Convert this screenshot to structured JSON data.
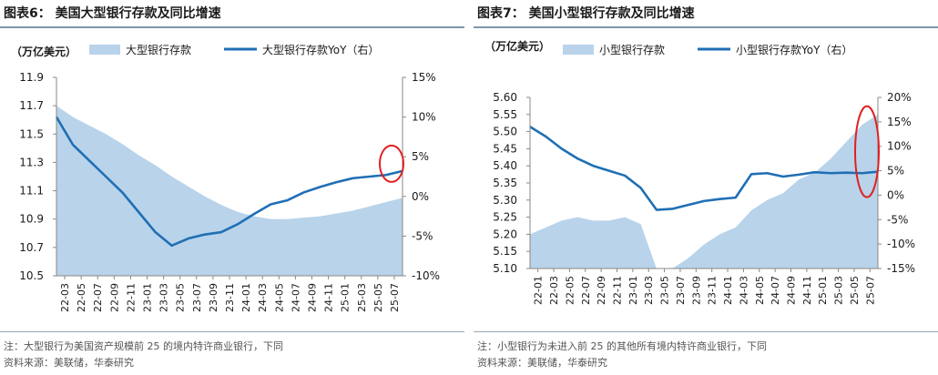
{
  "chart_data": [
    {
      "type": "area+line",
      "title": "图表6：  美国大型银行存款及同比增速",
      "ylabel_left": "（万亿美元）",
      "ylim_left": [
        10.5,
        11.9
      ],
      "yticks_left": [
        "11.9",
        "11.7",
        "11.5",
        "11.3",
        "11.1",
        "10.9",
        "10.7",
        "10.5"
      ],
      "ylim_right": [
        -10,
        15
      ],
      "yticks_right": [
        "15%",
        "10%",
        "5%",
        "0%",
        "-5%",
        "-10%"
      ],
      "xticks": [
        "22-03",
        "22-05",
        "22-07",
        "22-09",
        "22-11",
        "23-01",
        "23-03",
        "23-05",
        "23-07",
        "23-09",
        "23-11",
        "24-01",
        "24-03",
        "24-05",
        "24-07",
        "24-09",
        "24-11",
        "25-01",
        "25-03",
        "25-05",
        "25-07"
      ],
      "series": [
        {
          "name": "大型银行存款",
          "axis": "left",
          "style": "area",
          "color": "#b8d3ea",
          "x": [
            0,
            1,
            2,
            3,
            4,
            5,
            6,
            7,
            8,
            9,
            10,
            11,
            12,
            13,
            14,
            15,
            16,
            17,
            18,
            19,
            20,
            21
          ],
          "values": [
            11.7,
            11.62,
            11.56,
            11.5,
            11.43,
            11.35,
            11.28,
            11.2,
            11.13,
            11.06,
            11.0,
            10.95,
            10.92,
            10.9,
            10.9,
            10.91,
            10.92,
            10.94,
            10.96,
            10.99,
            11.02,
            11.05
          ]
        },
        {
          "name": "大型银行存款YoY（右）",
          "axis": "right",
          "style": "line",
          "color": "#1f6fb5",
          "x": [
            0,
            1,
            2,
            3,
            4,
            5,
            6,
            7,
            8,
            9,
            10,
            11,
            12,
            13,
            14,
            15,
            16,
            17,
            18,
            19,
            20,
            21
          ],
          "values": [
            10.0,
            6.5,
            4.5,
            2.5,
            0.5,
            -2.0,
            -4.5,
            -6.2,
            -5.3,
            -4.8,
            -4.5,
            -3.5,
            -2.2,
            -1.0,
            -0.5,
            0.5,
            1.2,
            1.8,
            2.3,
            2.5,
            2.7,
            3.2
          ]
        }
      ],
      "annotation": "red ellipse around latest values",
      "note": "注：大型银行为美国资产规模前 25 的境内特许商业银行，下同",
      "source": "资料来源：美联储，华泰研究"
    },
    {
      "type": "area+line",
      "title": "图表7：  美国小型银行存款及同比增速",
      "ylabel_left": "（万亿美元）",
      "ylim_left": [
        5.1,
        5.6
      ],
      "yticks_left": [
        "5.60",
        "5.55",
        "5.50",
        "5.45",
        "5.40",
        "5.35",
        "5.30",
        "5.25",
        "5.20",
        "5.15",
        "5.10"
      ],
      "ylim_right": [
        -15,
        20
      ],
      "yticks_right": [
        "20%",
        "15%",
        "10%",
        "5%",
        "0%",
        "-5%",
        "-10%",
        "-15%"
      ],
      "xticks": [
        "22-01",
        "22-03",
        "22-05",
        "22-07",
        "22-09",
        "22-11",
        "23-01",
        "23-03",
        "23-05",
        "23-07",
        "23-09",
        "23-11",
        "24-01",
        "24-03",
        "24-05",
        "24-07",
        "24-09",
        "24-11",
        "25-01",
        "25-03",
        "25-05",
        "25-07"
      ],
      "series": [
        {
          "name": "小型银行存款",
          "axis": "left",
          "style": "area",
          "color": "#b8d3ea",
          "x": [
            0,
            1,
            2,
            3,
            4,
            5,
            6,
            7,
            8,
            9,
            10,
            11,
            12,
            13,
            14,
            15,
            16,
            17,
            18,
            19,
            20,
            21,
            22
          ],
          "values": [
            5.2,
            5.22,
            5.24,
            5.25,
            5.24,
            5.24,
            5.25,
            5.23,
            5.1,
            5.1,
            5.13,
            5.17,
            5.2,
            5.22,
            5.27,
            5.3,
            5.32,
            5.36,
            5.38,
            5.42,
            5.47,
            5.52,
            5.55
          ]
        },
        {
          "name": "小型银行存款YoY（右）",
          "axis": "right",
          "style": "line",
          "color": "#1f6fb5",
          "x": [
            0,
            1,
            2,
            3,
            4,
            5,
            6,
            7,
            8,
            9,
            10,
            11,
            12,
            13,
            14,
            15,
            16,
            17,
            18,
            19,
            20,
            21,
            22
          ],
          "values": [
            14.0,
            12.0,
            9.5,
            7.5,
            6.0,
            5.0,
            4.0,
            1.5,
            -3.0,
            -2.8,
            -2.0,
            -1.2,
            -0.8,
            -0.5,
            4.3,
            4.5,
            3.8,
            4.2,
            4.7,
            4.5,
            4.6,
            4.5,
            4.8
          ]
        }
      ],
      "annotation": "red ellipse around latest values",
      "note": "注：小型银行为未进入前 25 的其他所有境内特许商业银行，下同",
      "source": "资料来源：美联储，华泰研究"
    }
  ]
}
